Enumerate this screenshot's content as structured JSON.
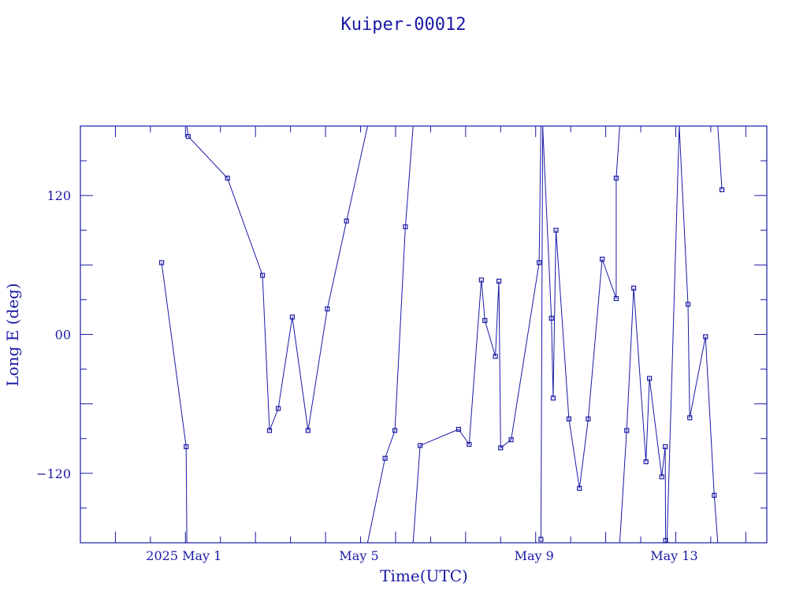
{
  "chart_data": {
    "type": "line",
    "title": "Kuiper-00012",
    "xlabel": "Time(UTC)",
    "ylabel": "Long E (deg)",
    "color": "#1a1aa6",
    "grid": false,
    "x_unit": "days (April 30 = 0)",
    "xlim": [
      -3.0,
      16.6
    ],
    "ylim": [
      -180,
      180
    ],
    "x_ticks": [
      {
        "x": 0,
        "label": "2025 May  1"
      },
      {
        "x": 5,
        "label": "May  5"
      },
      {
        "x": 10,
        "label": "May  9"
      },
      {
        "x": 14,
        "label": "May 13"
      }
    ],
    "y_ticks": [
      {
        "y": 120,
        "label": "120"
      },
      {
        "y": 0,
        "label": "00"
      },
      {
        "y": -120,
        "label": "−120"
      }
    ],
    "segments": [
      {
        "points": [
          [
            -0.68,
            62
          ],
          [
            0.02,
            -97
          ],
          [
            0.04,
            -180
          ]
        ]
      },
      {
        "points": [
          [
            0.04,
            180
          ],
          [
            0.08,
            171
          ],
          [
            1.2,
            135
          ],
          [
            2.2,
            51
          ],
          [
            2.4,
            -83
          ],
          [
            2.65,
            -64
          ],
          [
            3.05,
            15
          ],
          [
            3.5,
            -83
          ],
          [
            4.05,
            22
          ],
          [
            4.6,
            98
          ],
          [
            5.2,
            180
          ]
        ]
      },
      {
        "points": [
          [
            5.2,
            -180
          ],
          [
            5.7,
            -107
          ],
          [
            5.98,
            -83
          ],
          [
            6.28,
            93
          ],
          [
            6.5,
            180
          ]
        ]
      },
      {
        "points": [
          [
            6.5,
            -180
          ],
          [
            6.7,
            -96
          ],
          [
            7.8,
            -82
          ],
          [
            8.1,
            -95
          ],
          [
            8.45,
            47
          ],
          [
            8.55,
            12
          ],
          [
            8.85,
            -19
          ],
          [
            8.95,
            46
          ],
          [
            9.0,
            -98
          ],
          [
            9.3,
            -91
          ],
          [
            10.1,
            62
          ],
          [
            10.15,
            180
          ]
        ]
      },
      {
        "points": [
          [
            10.15,
            -177
          ],
          [
            10.2,
            180
          ]
        ]
      },
      {
        "points": [
          [
            10.2,
            180
          ],
          [
            10.45,
            14
          ],
          [
            10.5,
            -55
          ],
          [
            10.58,
            90
          ],
          [
            10.95,
            -73
          ],
          [
            11.25,
            -133
          ],
          [
            11.5,
            -73
          ],
          [
            11.9,
            65
          ],
          [
            12.3,
            31
          ],
          [
            12.3,
            135
          ],
          [
            12.4,
            180
          ]
        ]
      },
      {
        "points": [
          [
            12.4,
            -180
          ],
          [
            12.6,
            -83
          ],
          [
            12.8,
            40
          ],
          [
            13.15,
            -110
          ],
          [
            13.25,
            -38
          ],
          [
            13.6,
            -123
          ],
          [
            13.7,
            -97
          ],
          [
            13.71,
            -178
          ],
          [
            13.72,
            -180
          ]
        ]
      },
      {
        "points": [
          [
            13.75,
            -180
          ],
          [
            14.1,
            180
          ]
        ]
      },
      {
        "points": [
          [
            14.1,
            180
          ],
          [
            14.1,
            180
          ],
          [
            14.35,
            26
          ],
          [
            14.4,
            -72
          ],
          [
            14.85,
            -2
          ],
          [
            15.1,
            -139
          ],
          [
            15.2,
            -180
          ]
        ]
      },
      {
        "points": [
          [
            15.2,
            180
          ],
          [
            15.32,
            125
          ]
        ]
      }
    ]
  }
}
